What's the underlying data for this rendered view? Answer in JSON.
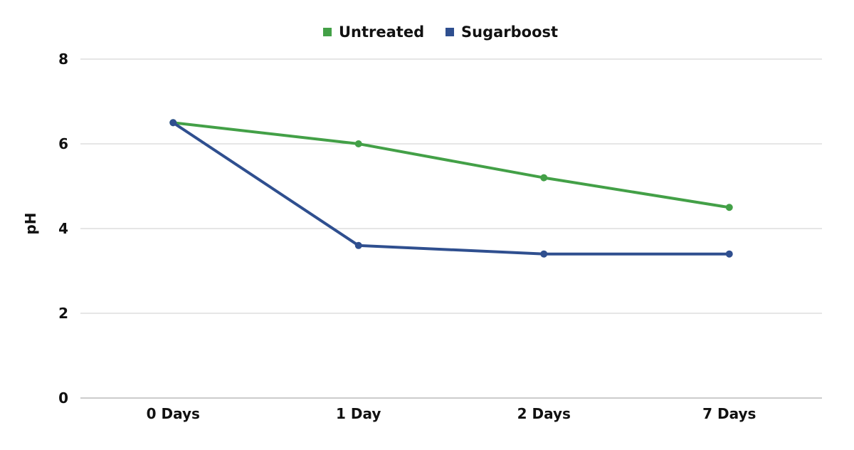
{
  "chart_data": {
    "type": "line",
    "categories": [
      "0 Days",
      "1 Day",
      "2 Days",
      "7 Days"
    ],
    "series": [
      {
        "name": "Untreated",
        "color": "#43a047",
        "values": [
          6.5,
          6.0,
          5.2,
          4.5
        ]
      },
      {
        "name": "Sugarboost",
        "color": "#2f4f8f",
        "values": [
          6.5,
          3.6,
          3.4,
          3.4
        ]
      }
    ],
    "title": "",
    "xlabel": "",
    "ylabel": "pH",
    "ylim": [
      0,
      8
    ],
    "yticks": [
      "0",
      "2",
      "4",
      "6",
      "8"
    ],
    "grid": true,
    "legend_position": "top-center"
  }
}
